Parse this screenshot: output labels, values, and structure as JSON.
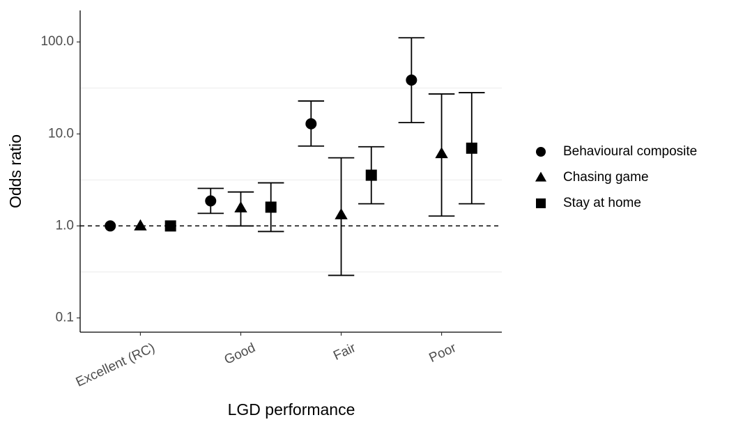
{
  "chart_data": {
    "type": "errorbar",
    "x_label": "LGD performance",
    "y_label": "Odds ratio",
    "categories": [
      "Excellent (RC)",
      "Good",
      "Fair",
      "Poor"
    ],
    "series": [
      {
        "name": "Behavioural composite",
        "shape": "circle",
        "color": "#000000",
        "values": [
          1,
          1.87,
          12.9,
          38.5
        ],
        "lower": [
          null,
          1.37,
          7.38,
          13.3
        ],
        "upper": [
          null,
          2.56,
          22.8,
          111
        ]
      },
      {
        "name": "Chasing game",
        "shape": "triangle",
        "color": "#000000",
        "values": [
          1,
          1.57,
          1.32,
          6.1
        ],
        "lower": [
          null,
          1.0,
          0.29,
          1.28
        ],
        "upper": [
          null,
          2.34,
          5.5,
          27.2
        ]
      },
      {
        "name": "Stay at home",
        "shape": "square",
        "color": "#000000",
        "values": [
          1,
          1.6,
          3.56,
          7.0
        ],
        "lower": [
          null,
          0.87,
          1.74,
          1.74
        ],
        "upper": [
          null,
          2.94,
          7.25,
          28.1
        ]
      }
    ],
    "log_y": true,
    "ylim": [
      0.07,
      220
    ],
    "yticks": [
      {
        "value": 0.1,
        "label": "0.1"
      },
      {
        "value": 1,
        "label": "1.0"
      },
      {
        "value": 10,
        "label": "10.0"
      },
      {
        "value": 100,
        "label": "100.0"
      }
    ],
    "minor_grid": [
      0.316,
      3.16,
      31.6
    ],
    "reference_line": 1,
    "legend": "right"
  }
}
